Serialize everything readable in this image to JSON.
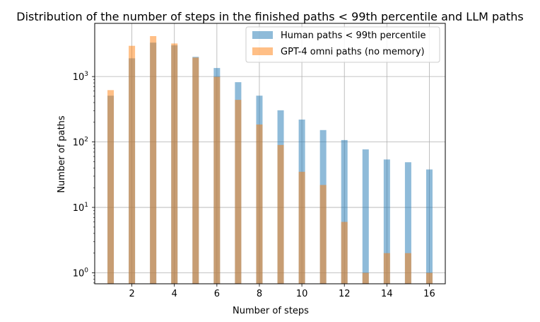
{
  "chart_data": {
    "type": "bar",
    "title": "Distribution of the number of steps in the finished paths < 99th percentile and LLM paths",
    "xlabel": "Number of steps",
    "ylabel": "Number of paths",
    "yscale": "log",
    "xlim": [
      0.25,
      16.75
    ],
    "ylim": [
      0.68,
      6500
    ],
    "grid": true,
    "legend_position": "top-right",
    "x_ticks": [
      {
        "value": 2,
        "label": "2"
      },
      {
        "value": 4,
        "label": "4"
      },
      {
        "value": 6,
        "label": "6"
      },
      {
        "value": 8,
        "label": "8"
      },
      {
        "value": 10,
        "label": "10"
      },
      {
        "value": 12,
        "label": "12"
      },
      {
        "value": 14,
        "label": "14"
      },
      {
        "value": 16,
        "label": "16"
      }
    ],
    "y_ticks": [
      {
        "value": 1,
        "label": "10⁰",
        "base": "10",
        "exp": "0"
      },
      {
        "value": 10,
        "label": "10¹",
        "base": "10",
        "exp": "1"
      },
      {
        "value": 100,
        "label": "10²",
        "base": "10",
        "exp": "2"
      },
      {
        "value": 1000,
        "label": "10³",
        "base": "10",
        "exp": "3"
      }
    ],
    "series": [
      {
        "name": "Human paths < 99th percentile",
        "color": "#1f77b4",
        "opacity": 0.5,
        "bars": [
          {
            "x": 1,
            "value": 510
          },
          {
            "x": 2,
            "value": 1900
          },
          {
            "x": 3,
            "value": 3300
          },
          {
            "x": 4,
            "value": 3000
          },
          {
            "x": 5,
            "value": 2000
          },
          {
            "x": 6,
            "value": 1350
          },
          {
            "x": 7,
            "value": 820
          },
          {
            "x": 8,
            "value": 510
          },
          {
            "x": 9,
            "value": 305
          },
          {
            "x": 10,
            "value": 220
          },
          {
            "x": 11,
            "value": 152
          },
          {
            "x": 12,
            "value": 107
          },
          {
            "x": 13,
            "value": 77
          },
          {
            "x": 14,
            "value": 54
          },
          {
            "x": 15,
            "value": 49
          },
          {
            "x": 16,
            "value": 38
          }
        ]
      },
      {
        "name": "GPT-4 omni paths (no memory)",
        "color": "#ff7f0e",
        "opacity": 0.5,
        "bars": [
          {
            "x": 1,
            "value": 620
          },
          {
            "x": 2,
            "value": 2950
          },
          {
            "x": 3,
            "value": 4150
          },
          {
            "x": 4,
            "value": 3200
          },
          {
            "x": 5,
            "value": 1950
          },
          {
            "x": 6,
            "value": 990
          },
          {
            "x": 7,
            "value": 440
          },
          {
            "x": 8,
            "value": 185
          },
          {
            "x": 9,
            "value": 90
          },
          {
            "x": 10,
            "value": 35
          },
          {
            "x": 11,
            "value": 22
          },
          {
            "x": 12,
            "value": 6
          },
          {
            "x": 13,
            "value": 1
          },
          {
            "x": 14,
            "value": 2
          },
          {
            "x": 15,
            "value": 2
          },
          {
            "x": 16,
            "value": 1
          }
        ]
      }
    ]
  }
}
